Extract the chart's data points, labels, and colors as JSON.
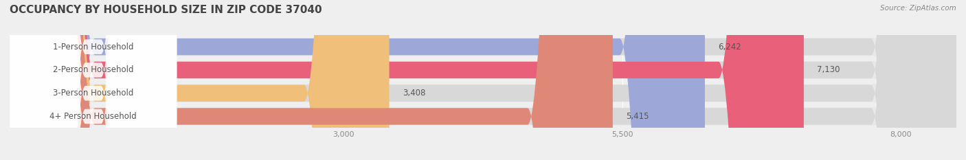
{
  "title": "OCCUPANCY BY HOUSEHOLD SIZE IN ZIP CODE 37040",
  "source": "Source: ZipAtlas.com",
  "categories": [
    "1-Person Household",
    "2-Person Household",
    "3-Person Household",
    "4+ Person Household"
  ],
  "values": [
    6242,
    7130,
    3408,
    5415
  ],
  "bar_colors": [
    "#9da8d8",
    "#e8607a",
    "#f0c07a",
    "#e08878"
  ],
  "label_bg_colors": [
    "#c8cce8",
    "#f5a0b0",
    "#f5d8a8",
    "#f0b8a8"
  ],
  "xlim": [
    0,
    8500
  ],
  "xticks": [
    3000,
    5500,
    8000
  ],
  "xtick_labels": [
    "3,000",
    "5,500",
    "8,000"
  ],
  "background_color": "#efefef",
  "bar_bg_color": "#e0e0e0",
  "bar_row_bg": "#e8e8e8",
  "title_fontsize": 11,
  "label_fontsize": 8.5,
  "value_fontsize": 8.5
}
